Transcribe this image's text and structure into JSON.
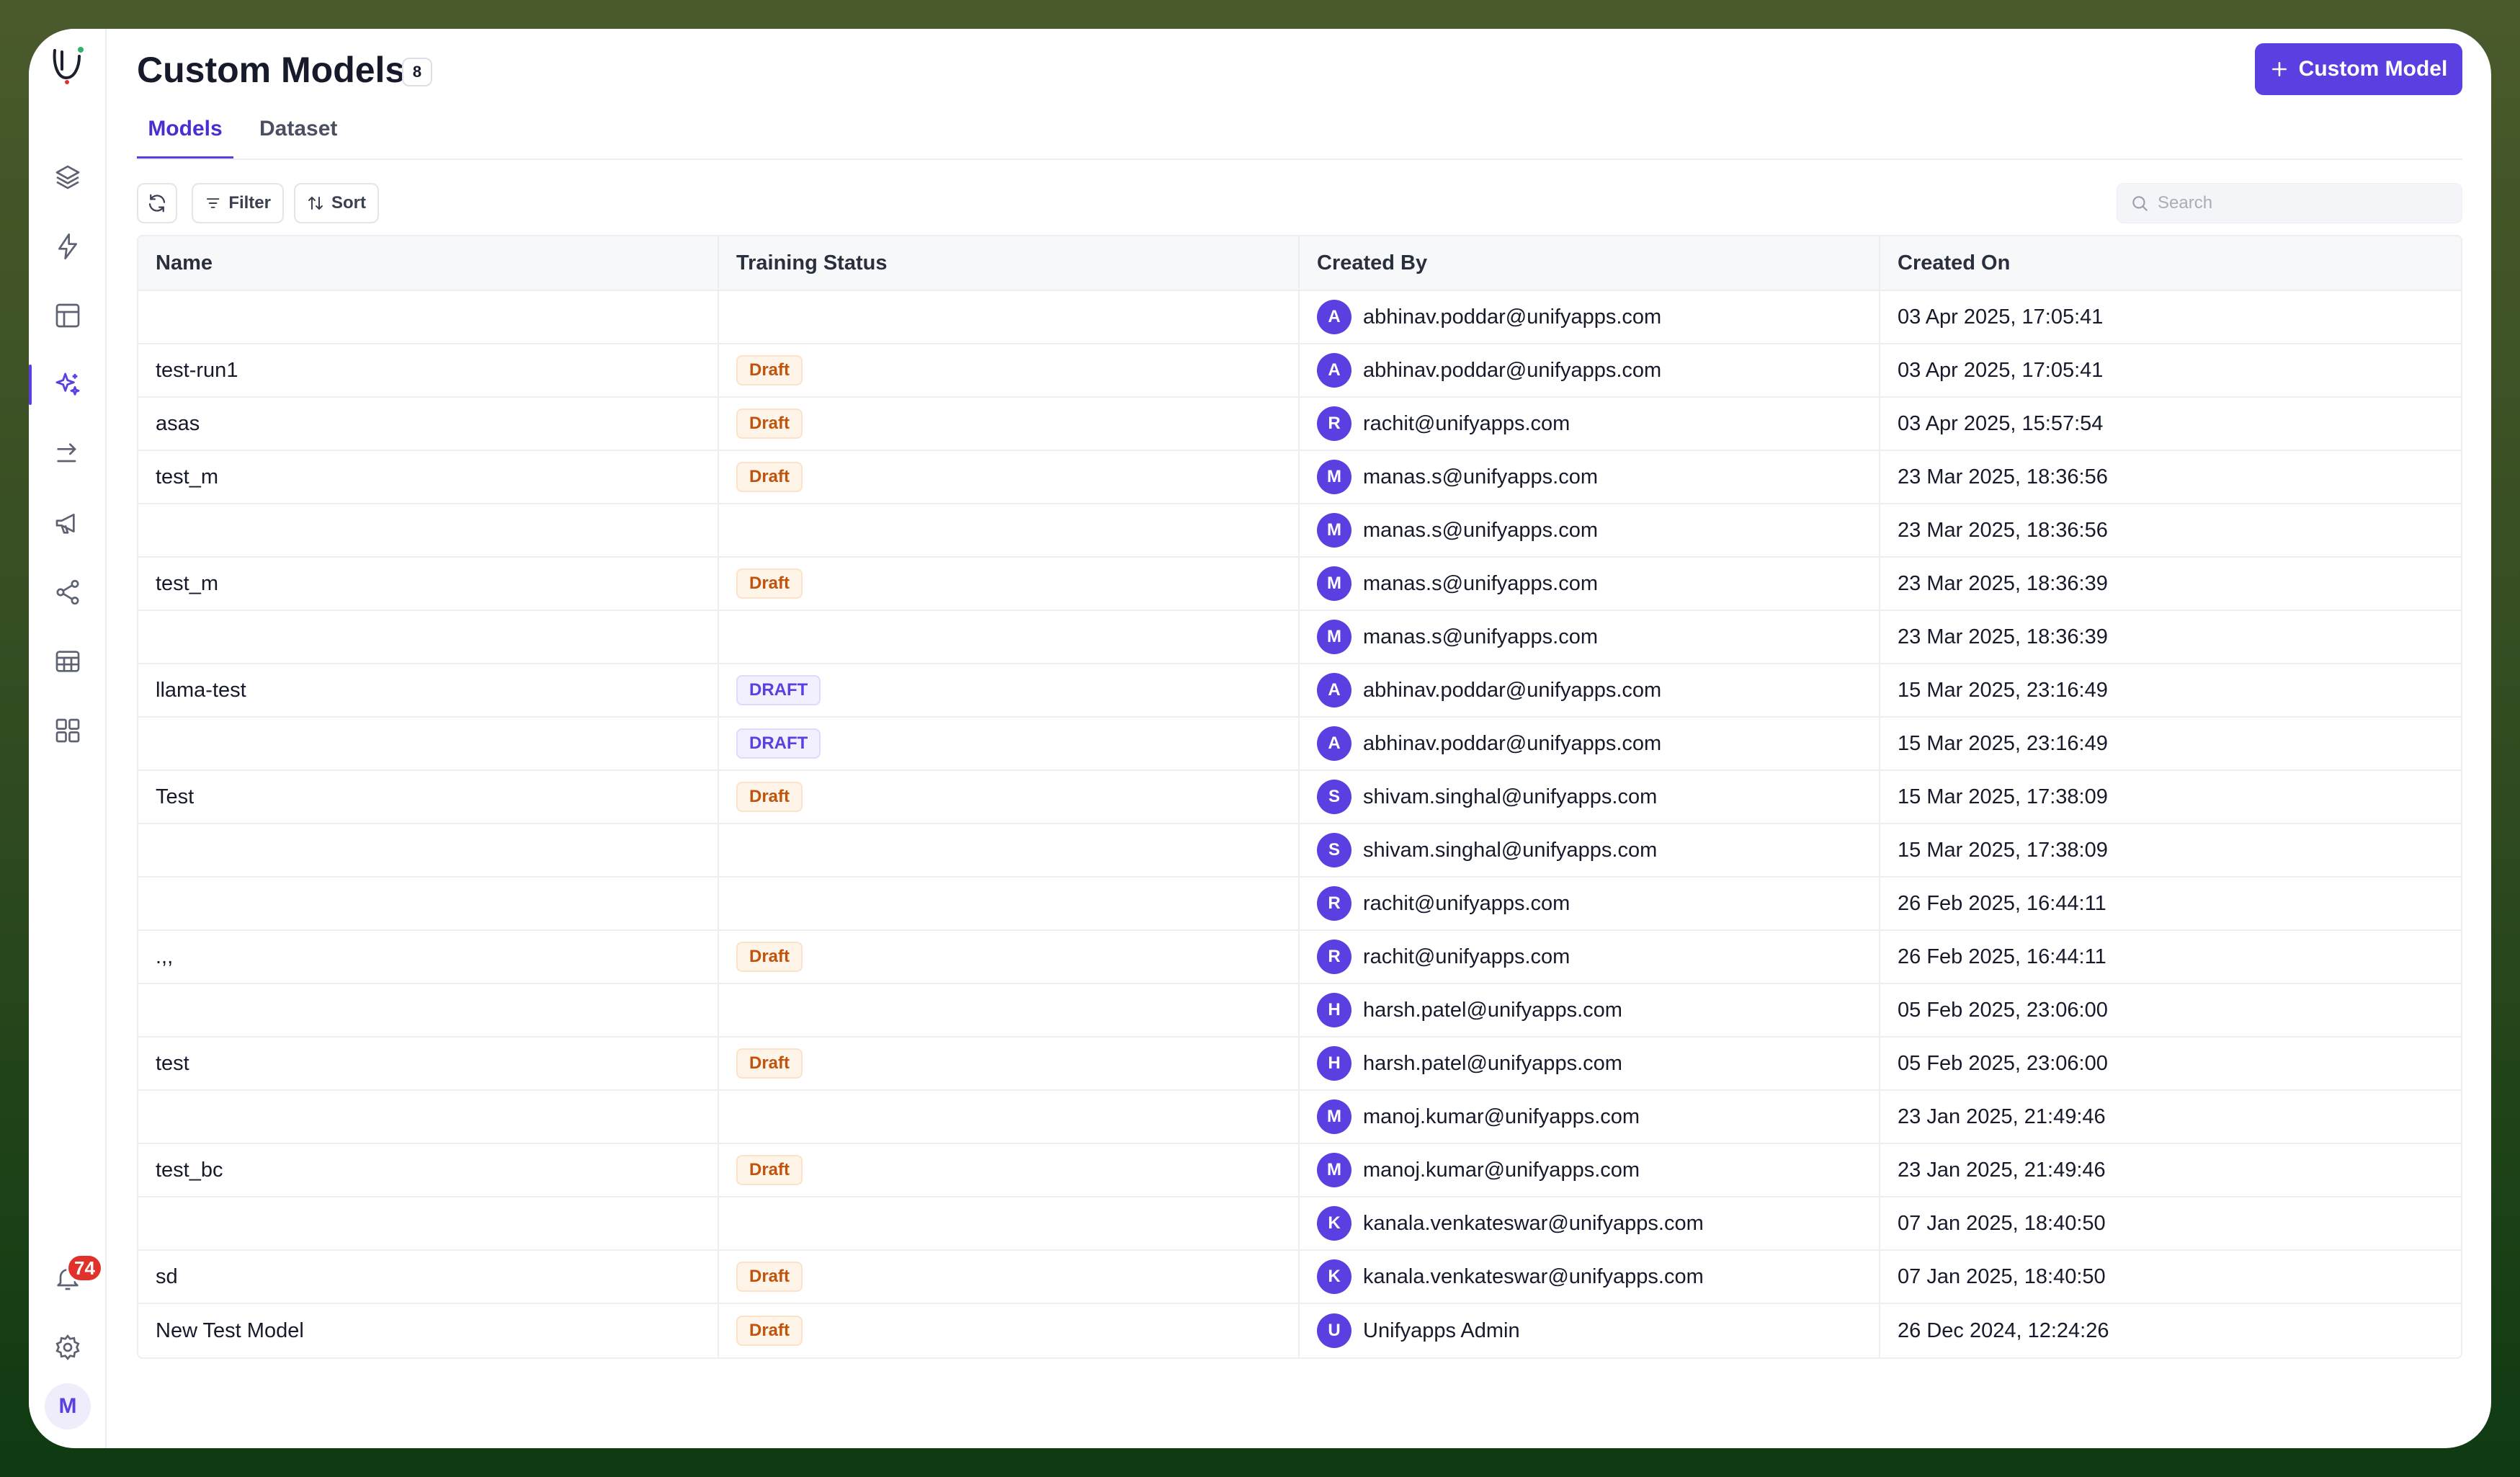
{
  "header": {
    "title": "Custom Models",
    "count": "8",
    "primary_button": "Custom Model"
  },
  "tabs": [
    {
      "label": "Models",
      "active": true
    },
    {
      "label": "Dataset",
      "active": false
    }
  ],
  "toolbar": {
    "filter_label": "Filter",
    "sort_label": "Sort",
    "search_placeholder": "Search"
  },
  "sidebar": {
    "notification_count": "74",
    "user_initial": "M",
    "nav_icons": [
      "layers-icon",
      "lightning-icon",
      "layout-icon",
      "sparkles-icon",
      "arrow-right-icon",
      "megaphone-icon",
      "share-icon",
      "table-icon",
      "grid-icon"
    ]
  },
  "table": {
    "columns": [
      "Name",
      "Training Status",
      "Created By",
      "Created On"
    ],
    "rows": [
      {
        "name": "",
        "status": "",
        "initial": "A",
        "created_by": "abhinav.poddar@unifyapps.com",
        "created_on": "03 Apr 2025, 17:05:41"
      },
      {
        "name": "test-run1",
        "status": "Draft",
        "initial": "A",
        "created_by": "abhinav.poddar@unifyapps.com",
        "created_on": "03 Apr 2025, 17:05:41"
      },
      {
        "name": "asas",
        "status": "Draft",
        "initial": "R",
        "created_by": "rachit@unifyapps.com",
        "created_on": "03 Apr 2025, 15:57:54"
      },
      {
        "name": "test_m",
        "status": "Draft",
        "initial": "M",
        "created_by": "manas.s@unifyapps.com",
        "created_on": "23 Mar 2025, 18:36:56"
      },
      {
        "name": "",
        "status": "",
        "initial": "M",
        "created_by": "manas.s@unifyapps.com",
        "created_on": "23 Mar 2025, 18:36:56"
      },
      {
        "name": "test_m",
        "status": "Draft",
        "initial": "M",
        "created_by": "manas.s@unifyapps.com",
        "created_on": "23 Mar 2025, 18:36:39"
      },
      {
        "name": "",
        "status": "",
        "initial": "M",
        "created_by": "manas.s@unifyapps.com",
        "created_on": "23 Mar 2025, 18:36:39"
      },
      {
        "name": "llama-test",
        "status": "DRAFT",
        "initial": "A",
        "created_by": "abhinav.poddar@unifyapps.com",
        "created_on": "15 Mar 2025, 23:16:49"
      },
      {
        "name": "",
        "status": "DRAFT",
        "initial": "A",
        "created_by": "abhinav.poddar@unifyapps.com",
        "created_on": "15 Mar 2025, 23:16:49"
      },
      {
        "name": "Test",
        "status": "Draft",
        "initial": "S",
        "created_by": "shivam.singhal@unifyapps.com",
        "created_on": "15 Mar 2025, 17:38:09"
      },
      {
        "name": "",
        "status": "",
        "initial": "S",
        "created_by": "shivam.singhal@unifyapps.com",
        "created_on": "15 Mar 2025, 17:38:09"
      },
      {
        "name": "",
        "status": "",
        "initial": "R",
        "created_by": "rachit@unifyapps.com",
        "created_on": "26 Feb 2025, 16:44:11"
      },
      {
        "name": ".,,",
        "status": "Draft",
        "initial": "R",
        "created_by": "rachit@unifyapps.com",
        "created_on": "26 Feb 2025, 16:44:11"
      },
      {
        "name": "",
        "status": "",
        "initial": "H",
        "created_by": "harsh.patel@unifyapps.com",
        "created_on": "05 Feb 2025, 23:06:00"
      },
      {
        "name": "test",
        "status": "Draft",
        "initial": "H",
        "created_by": "harsh.patel@unifyapps.com",
        "created_on": "05 Feb 2025, 23:06:00"
      },
      {
        "name": "",
        "status": "",
        "initial": "M",
        "created_by": "manoj.kumar@unifyapps.com",
        "created_on": "23 Jan 2025, 21:49:46"
      },
      {
        "name": "test_bc",
        "status": "Draft",
        "initial": "M",
        "created_by": "manoj.kumar@unifyapps.com",
        "created_on": "23 Jan 2025, 21:49:46"
      },
      {
        "name": "",
        "status": "",
        "initial": "K",
        "created_by": "kanala.venkateswar@unifyapps.com",
        "created_on": "07 Jan 2025, 18:40:50"
      },
      {
        "name": "sd",
        "status": "Draft",
        "initial": "K",
        "created_by": "kanala.venkateswar@unifyapps.com",
        "created_on": "07 Jan 2025, 18:40:50"
      },
      {
        "name": "New Test Model",
        "status": "Draft",
        "initial": "U",
        "created_by": "Unifyapps Admin",
        "created_on": "26 Dec 2024, 12:24:26"
      }
    ]
  },
  "colors": {
    "accent": "#5b3fe0",
    "draft_text": "#c0540c",
    "draft_bg": "#fff4e8",
    "notification": "#e0322a"
  }
}
